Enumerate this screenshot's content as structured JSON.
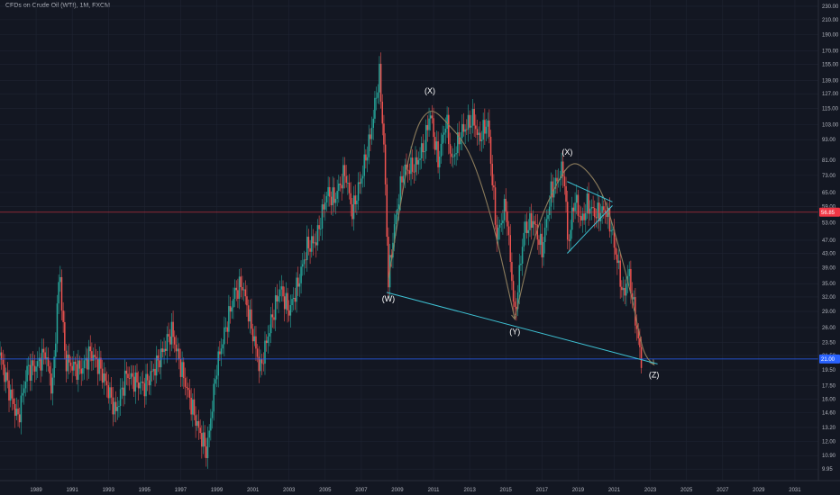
{
  "header": {
    "symbol_title": "CFDs on Crude Oil (WTI), 1M, FXCM"
  },
  "colors": {
    "background": "#131722",
    "up": "#26a69a",
    "down": "#ef5350",
    "curve": "#8c7c5c",
    "trendline": "#3ec1d3",
    "price_line": "#f23645",
    "horizontal_line": "#2962ff",
    "grid": "#1f2433"
  },
  "chart_data": {
    "type": "candlestick",
    "title": "CFDs on Crude Oil (WTI), 1M, FXCM",
    "x_range": [
      1987.5,
      2032.8
    ],
    "y_range": [
      9.2,
      240
    ],
    "y_scale": "log",
    "x_ticks": [
      "1989",
      "1991",
      "1993",
      "1995",
      "1997",
      "1999",
      "2001",
      "2003",
      "2005",
      "2007",
      "2009",
      "2011",
      "2013",
      "2015",
      "2017",
      "2019",
      "2021",
      "2023",
      "2025",
      "2027",
      "2029",
      "2031"
    ],
    "y_ticks": [
      "230.00",
      "210.00",
      "190.00",
      "170.00",
      "155.00",
      "139.00",
      "127.00",
      "115.00",
      "103.00",
      "93.00",
      "81.00",
      "73.00",
      "65.00",
      "59.00",
      "53.00",
      "47.00",
      "43.00",
      "39.00",
      "35.00",
      "32.00",
      "29.00",
      "26.00",
      "23.50",
      "21.50",
      "19.50",
      "17.50",
      "16.00",
      "14.60",
      "13.20",
      "12.00",
      "10.90",
      "9.95"
    ],
    "current_price": "56.85",
    "marked_price": "21.00",
    "price_path": [
      [
        1987.5,
        21.5
      ],
      [
        1988.0,
        17.0
      ],
      [
        1988.5,
        14.0
      ],
      [
        1989.0,
        19.5
      ],
      [
        1989.5,
        20.0
      ],
      [
        1990.0,
        22.0
      ],
      [
        1990.4,
        17.0
      ],
      [
        1990.8,
        39.0
      ],
      [
        1991.1,
        21.0
      ],
      [
        1991.5,
        20.0
      ],
      [
        1992.0,
        19.5
      ],
      [
        1992.5,
        22.0
      ],
      [
        1993.0,
        20.0
      ],
      [
        1993.5,
        17.0
      ],
      [
        1993.9,
        14.6
      ],
      [
        1994.5,
        19.0
      ],
      [
        1995.0,
        18.0
      ],
      [
        1995.5,
        17.5
      ],
      [
        1996.0,
        19.5
      ],
      [
        1996.5,
        22.0
      ],
      [
        1997.0,
        25.5
      ],
      [
        1997.5,
        20.0
      ],
      [
        1998.0,
        16.0
      ],
      [
        1998.5,
        13.0
      ],
      [
        1998.95,
        11.2
      ],
      [
        1999.5,
        20.0
      ],
      [
        2000.0,
        26.0
      ],
      [
        2000.5,
        33.0
      ],
      [
        2000.9,
        35.0
      ],
      [
        2001.3,
        28.0
      ],
      [
        2001.9,
        19.5
      ],
      [
        2002.5,
        27.0
      ],
      [
        2003.0,
        34.0
      ],
      [
        2003.5,
        29.0
      ],
      [
        2004.0,
        35.0
      ],
      [
        2004.5,
        45.0
      ],
      [
        2005.0,
        47.0
      ],
      [
        2005.6,
        65.0
      ],
      [
        2006.0,
        62.0
      ],
      [
        2006.6,
        75.0
      ],
      [
        2007.0,
        57.0
      ],
      [
        2007.5,
        72.0
      ],
      [
        2008.0,
        95.0
      ],
      [
        2008.5,
        145.0
      ],
      [
        2008.75,
        90.0
      ],
      [
        2009.0,
        36.0
      ],
      [
        2009.3,
        50.0
      ],
      [
        2009.8,
        75.0
      ],
      [
        2010.5,
        78.0
      ],
      [
        2011.0,
        90.0
      ],
      [
        2011.3,
        113.0
      ],
      [
        2011.75,
        80.0
      ],
      [
        2012.2,
        107.0
      ],
      [
        2012.5,
        80.0
      ],
      [
        2013.0,
        97.0
      ],
      [
        2013.7,
        108.0
      ],
      [
        2014.0,
        93.0
      ],
      [
        2014.5,
        105.0
      ],
      [
        2015.0,
        48.0
      ],
      [
        2015.5,
        60.0
      ],
      [
        2016.0,
        28.0
      ],
      [
        2016.5,
        50.0
      ],
      [
        2017.0,
        54.0
      ],
      [
        2017.5,
        44.0
      ],
      [
        2018.0,
        65.0
      ],
      [
        2018.7,
        77.0
      ],
      [
        2018.95,
        45.0
      ],
      [
        2019.3,
        63.0
      ],
      [
        2019.7,
        53.0
      ],
      [
        2020.0,
        60.0
      ],
      [
        2020.5,
        56.0
      ],
      [
        2021.0,
        58.0
      ],
      [
        2021.3,
        52.0
      ],
      [
        2021.7,
        40.0
      ],
      [
        2022.0,
        32.0
      ],
      [
        2022.3,
        38.0
      ],
      [
        2022.7,
        27.0
      ],
      [
        2023.0,
        20.5
      ]
    ],
    "annotations": {
      "wave_labels": [
        {
          "text": "(W)",
          "x": 2009.0,
          "y": 31.0
        },
        {
          "text": "(X)",
          "x": 2011.3,
          "y": 127.0
        },
        {
          "text": "(Y)",
          "x": 2016.0,
          "y": 24.8
        },
        {
          "text": "(X)",
          "x": 2018.9,
          "y": 84.0
        },
        {
          "text": "(Z)",
          "x": 2023.7,
          "y": 18.5
        }
      ],
      "curve_1": [
        [
          2009.0,
          36.0
        ],
        [
          2010.2,
          85.0
        ],
        [
          2011.2,
          112.0
        ],
        [
          2012.4,
          102.0
        ],
        [
          2013.6,
          82.0
        ],
        [
          2014.8,
          52.0
        ],
        [
          2016.0,
          27.5
        ]
      ],
      "curve_2": [
        [
          2016.0,
          27.5
        ],
        [
          2016.8,
          42.0
        ],
        [
          2017.6,
          57.0
        ],
        [
          2018.6,
          73.0
        ],
        [
          2019.3,
          79.0
        ],
        [
          2020.1,
          74.0
        ],
        [
          2020.9,
          63.0
        ],
        [
          2021.6,
          48.0
        ],
        [
          2022.4,
          33.0
        ],
        [
          2023.1,
          22.5
        ],
        [
          2023.7,
          20.2
        ]
      ],
      "trendlines": [
        {
          "from": [
            2008.9,
            33.0
          ],
          "to": [
            2023.9,
            20.3
          ]
        },
        {
          "from": [
            2018.9,
            70.0
          ],
          "to": [
            2021.4,
            61.0
          ]
        },
        {
          "from": [
            2018.9,
            43.0
          ],
          "to": [
            2021.4,
            59.5
          ]
        }
      ]
    }
  }
}
